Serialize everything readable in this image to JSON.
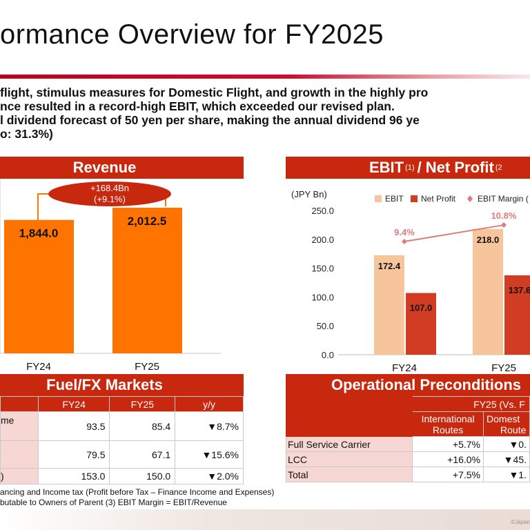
{
  "title": "ormance Overview for FY2025",
  "summary_lines": [
    "flight, stimulus measures for Domestic Flight, and growth in the highly pro",
    "nce resulted in a record-high EBIT, which exceeded our revised plan.",
    "l dividend forecast of 50 yen per share, making the annual dividend 96 ye",
    "o: 31.3%)"
  ],
  "revenue_panel": {
    "title": "Revenue",
    "change_line1": "+168.4Bn",
    "change_line2": "(+9.1%)"
  },
  "ebit_panel": {
    "title_part1": "EBIT",
    "sup1": "(1)",
    "title_part2": "/ Net Profit",
    "sup2": "(2"
  },
  "fuel_panel": {
    "title": "Fuel/FX Markets",
    "headers": [
      "FY24",
      "FY25",
      "y/y"
    ],
    "rows": [
      {
        "label": "me",
        "fy24": "93.5",
        "fy25": "85.4",
        "yy": "▼8.7%"
      },
      {
        "label": "",
        "fy24": "79.5",
        "fy25": "67.1",
        "yy": "▼15.6%"
      },
      {
        "label": ")",
        "fy24": "153.0",
        "fy25": "150.0",
        "yy": "▼2.0%"
      }
    ]
  },
  "ops_panel": {
    "title": "Operational Preconditions",
    "group_header": "FY25 (Vs. F",
    "col1_line1": "International",
    "col1_line2": "Routes",
    "col2_line1": "Domest",
    "col2_line2": "Route",
    "rows": [
      {
        "label": "Full Service Carrier",
        "intl": "+5.7%",
        "dom": "▼0."
      },
      {
        "label": "LCC",
        "intl": "+16.0%",
        "dom": "▼45."
      },
      {
        "label": "Total",
        "intl": "+7.5%",
        "dom": "▼1."
      }
    ]
  },
  "footnotes": [
    "ancing and Income tax (Profit before Tax – Finance Income and Expenses)",
    "butable to Owners of Parent  (3) EBIT Margin = EBIT/Revenue"
  ],
  "copyright": "©Japan",
  "chart_data": [
    {
      "type": "bar",
      "title": "Revenue",
      "categories": [
        "FY24",
        "FY25"
      ],
      "values": [
        1844.0,
        2012.5
      ],
      "value_labels": [
        "1,844.0",
        "2,012.5"
      ],
      "color": "#ff7300"
    },
    {
      "type": "bar",
      "title": "EBIT / Net Profit",
      "ylabel": "(JPY Bn)",
      "categories": [
        "FY24",
        "FY25"
      ],
      "ylim": [
        0,
        250
      ],
      "yticks": [
        "0.0",
        "50.0",
        "100.0",
        "150.0",
        "200.0",
        "250.0"
      ],
      "legend": [
        "EBIT",
        "Net Profit",
        "EBIT Margin ("
      ],
      "legend_position": "top",
      "series": [
        {
          "name": "EBIT",
          "values": [
            172.4,
            218.0
          ],
          "labels": [
            "172.4",
            "218.0"
          ],
          "color": "#f6c59c"
        },
        {
          "name": "Net Profit",
          "values": [
            107.0,
            137.6
          ],
          "labels": [
            "107.0",
            "137.6"
          ],
          "color": "#d13d22"
        },
        {
          "name": "EBIT Margin",
          "values": [
            9.4,
            10.8
          ],
          "labels": [
            "9.4%",
            "10.8%"
          ],
          "color": "#e07b7b"
        }
      ]
    }
  ]
}
